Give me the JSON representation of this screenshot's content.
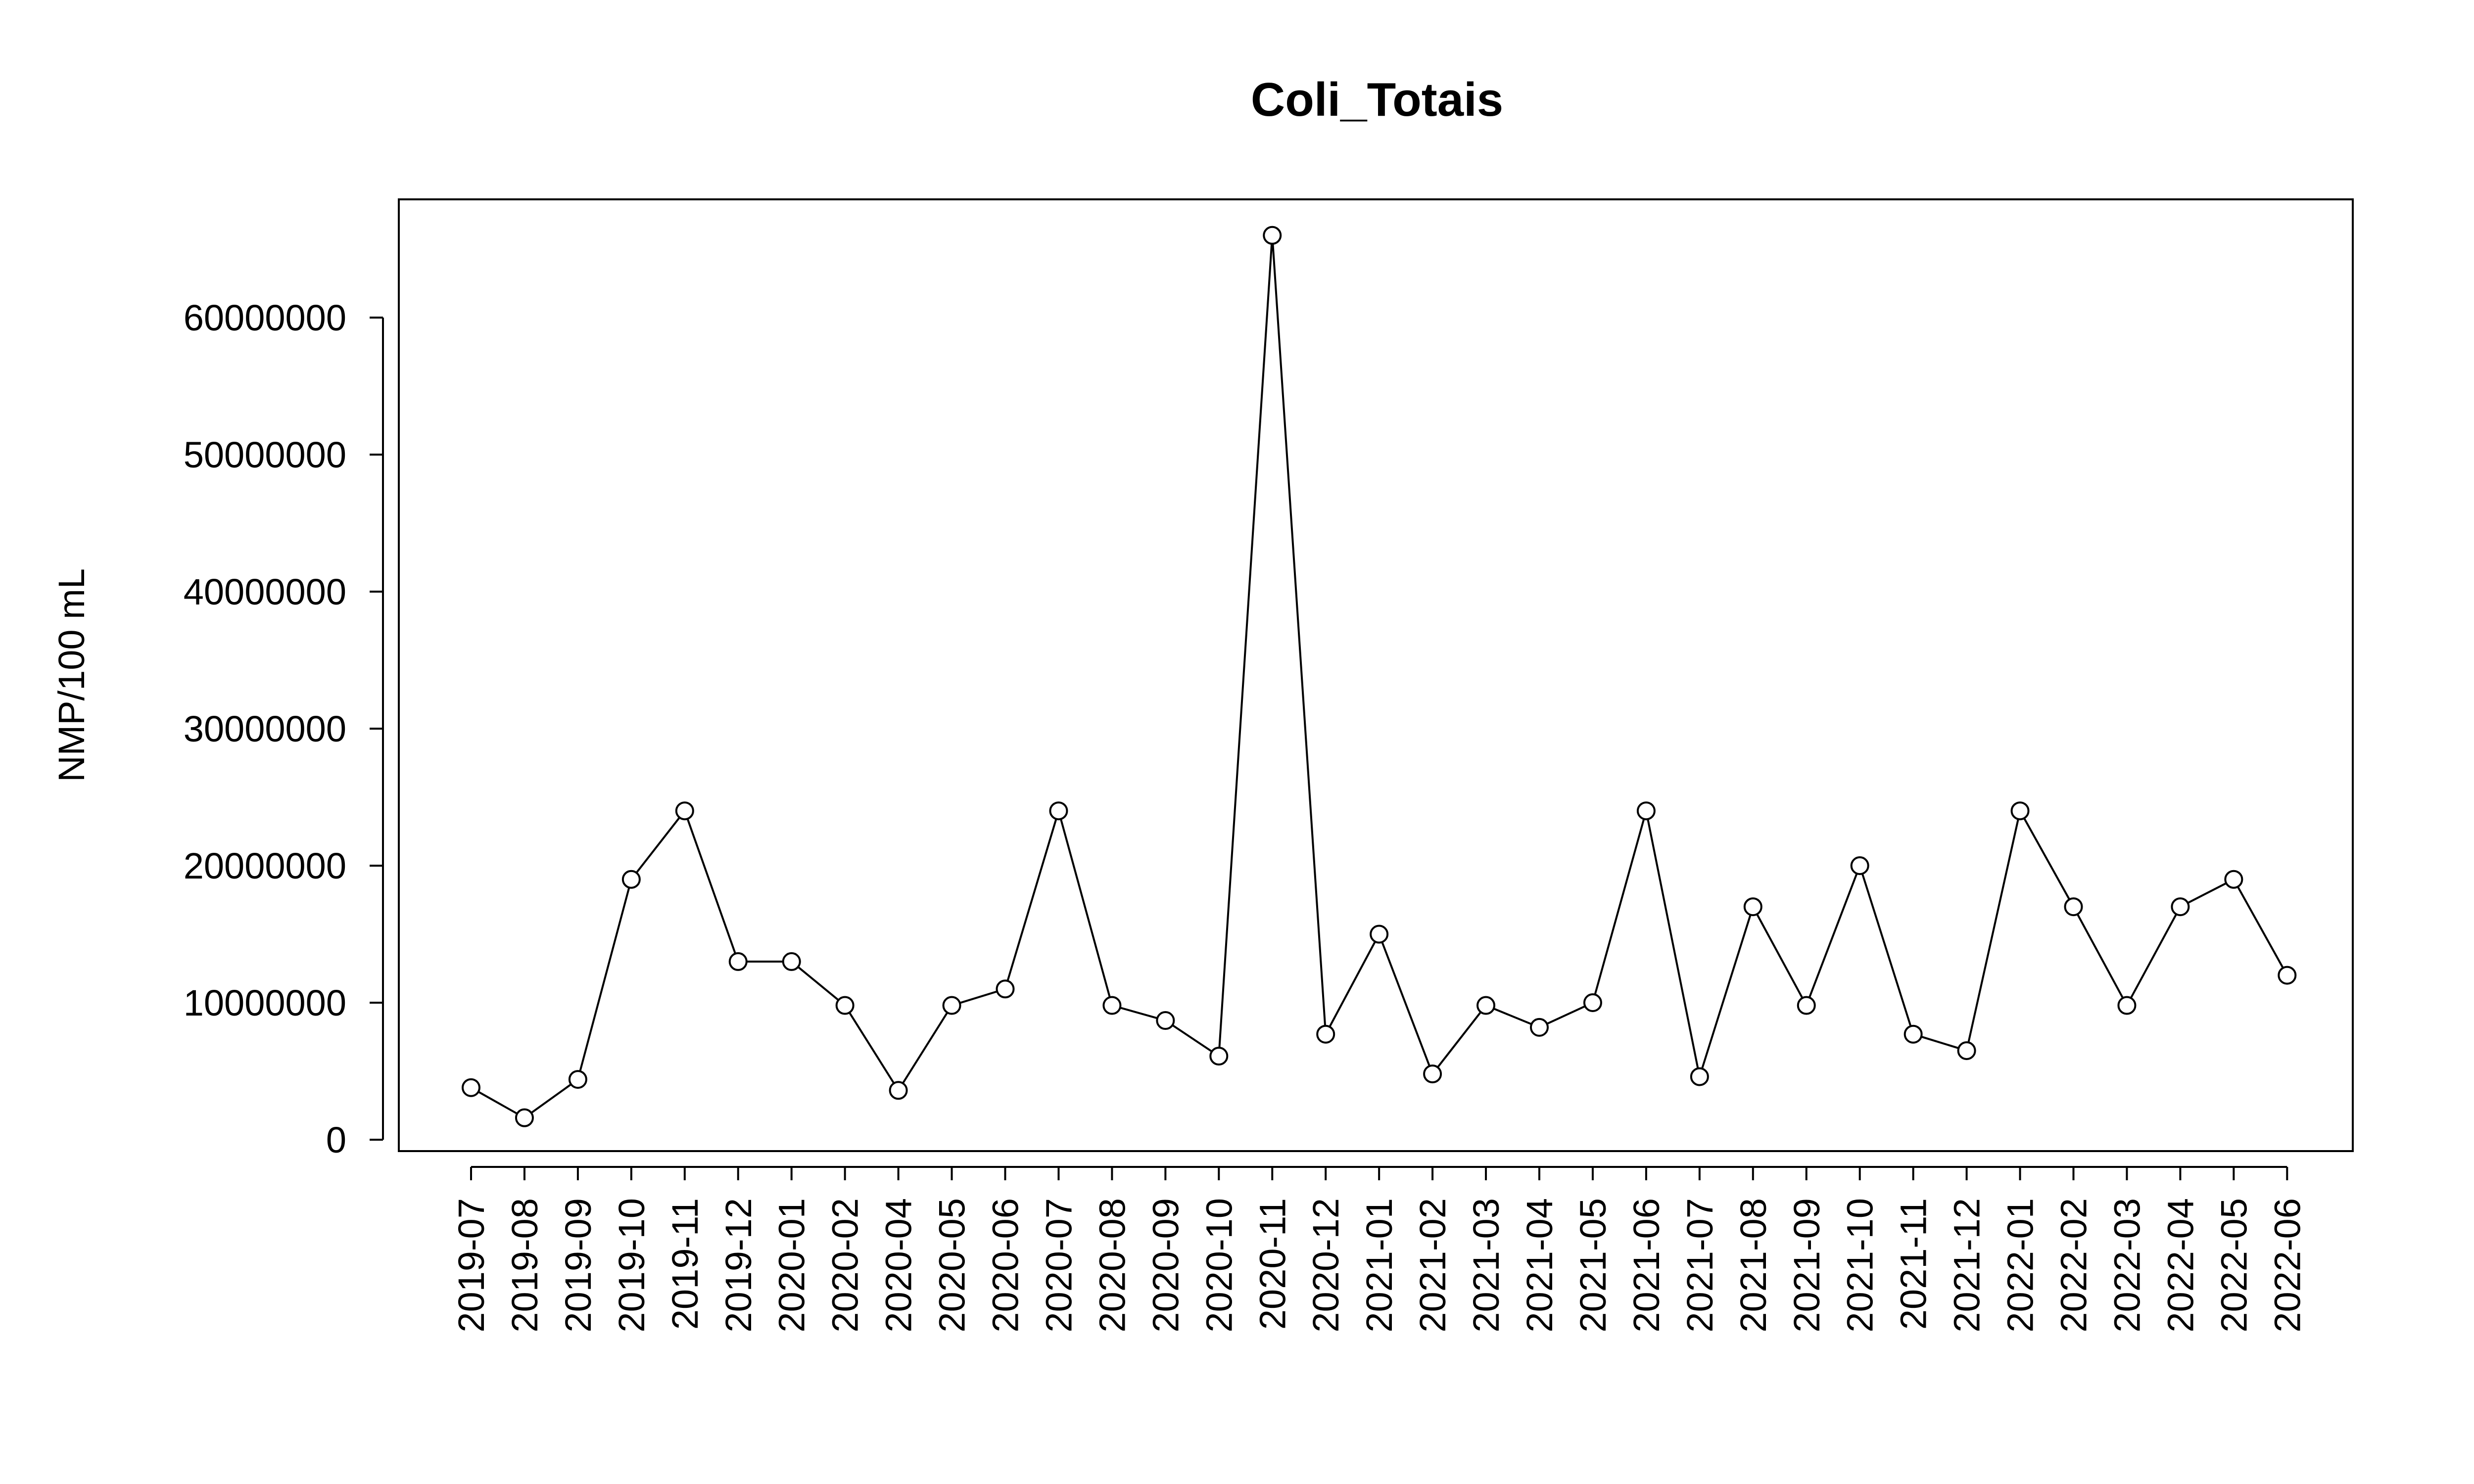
{
  "chart_data": {
    "type": "line",
    "title": "Coli_Totais",
    "xlabel": "",
    "ylabel": "NMP/100 mL",
    "ylim": [
      0,
      68000000
    ],
    "yticks": [
      0,
      10000000,
      20000000,
      30000000,
      40000000,
      50000000,
      60000000
    ],
    "ytick_labels": [
      "0",
      "10000000",
      "20000000",
      "30000000",
      "40000000",
      "50000000",
      "60000000"
    ],
    "grid": false,
    "legend": "none",
    "marker": "open-circle",
    "line_color": "#000000",
    "categories": [
      "2019-07",
      "2019-08",
      "2019-09",
      "2019-10",
      "2019-11",
      "2019-12",
      "2020-01",
      "2020-02",
      "2020-04",
      "2020-05",
      "2020-06",
      "2020-07",
      "2020-08",
      "2020-09",
      "2020-10",
      "2020-11",
      "2020-12",
      "2021-01",
      "2021-02",
      "2021-03",
      "2021-04",
      "2021-05",
      "2021-06",
      "2021-07",
      "2021-08",
      "2021-09",
      "2021-10",
      "2021-11",
      "2021-12",
      "2022-01",
      "2022-02",
      "2022-03",
      "2022-04",
      "2022-05",
      "2022-06"
    ],
    "values": [
      3800000,
      1600000,
      4400000,
      19000000,
      24000000,
      13000000,
      13000000,
      9800000,
      3600000,
      9800000,
      11000000,
      24000000,
      9800000,
      8700000,
      6100000,
      66000000,
      7700000,
      15000000,
      4800000,
      9800000,
      8200000,
      10000000,
      24000000,
      4600000,
      17000000,
      9800000,
      20000000,
      7700000,
      6500000,
      24000000,
      17000000,
      9800000,
      17000000,
      19000000,
      12000000
    ]
  }
}
